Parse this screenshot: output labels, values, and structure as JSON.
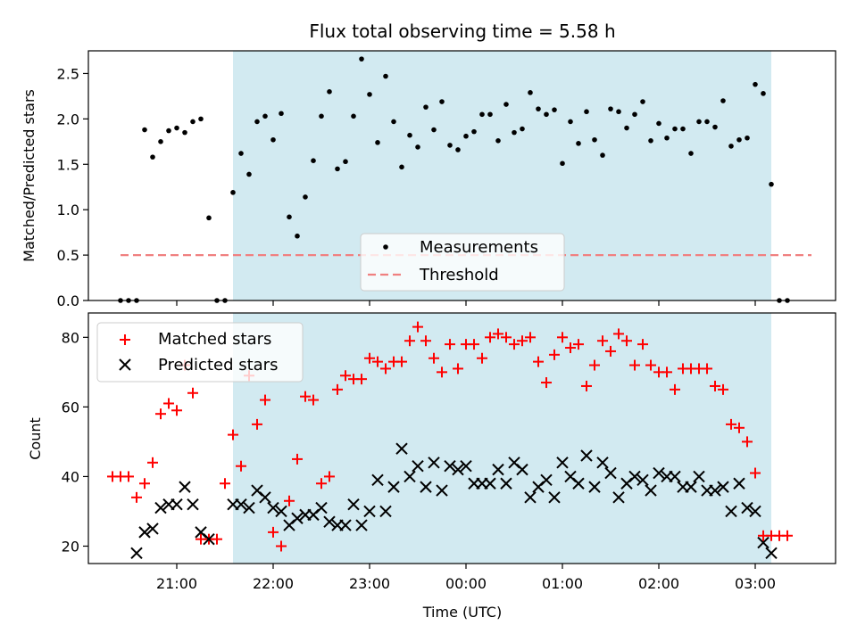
{
  "chart_data": [
    {
      "type": "scatter",
      "title": "Flux total observing time = 5.58 h",
      "ylabel": "Matched/Predicted stars",
      "xlabel": "",
      "xlim": [
        "20:05",
        "03:50"
      ],
      "ylim": [
        0,
        2.75
      ],
      "x_ticks": [
        "21:00",
        "22:00",
        "23:00",
        "00:00",
        "01:00",
        "02:00",
        "03:00"
      ],
      "y_ticks": [
        "0.0",
        "0.5",
        "1.0",
        "1.5",
        "2.0",
        "2.5"
      ],
      "shaded_region": {
        "start": "21:35",
        "end": "03:10",
        "color": "#add8e6"
      },
      "threshold": {
        "name": "Threshold",
        "value": 0.5,
        "color": "#f08080",
        "start": "20:25",
        "end": "03:35"
      },
      "legend": {
        "placement": "lower-center",
        "entries": [
          "Measurements",
          "Threshold"
        ]
      },
      "series": [
        {
          "name": "Measurements",
          "color": "#000000",
          "x": [
            "20:25",
            "20:30",
            "20:35",
            "20:40",
            "20:45",
            "20:50",
            "20:55",
            "21:00",
            "21:05",
            "21:10",
            "21:15",
            "21:20",
            "21:25",
            "21:30",
            "21:35",
            "21:40",
            "21:45",
            "21:50",
            "21:55",
            "22:00",
            "22:05",
            "22:10",
            "22:15",
            "22:20",
            "22:25",
            "22:30",
            "22:35",
            "22:40",
            "22:45",
            "22:50",
            "22:55",
            "23:00",
            "23:05",
            "23:10",
            "23:15",
            "23:20",
            "23:25",
            "23:30",
            "23:35",
            "23:40",
            "23:45",
            "23:50",
            "23:55",
            "00:00",
            "00:05",
            "00:10",
            "00:15",
            "00:20",
            "00:25",
            "00:30",
            "00:35",
            "00:40",
            "00:45",
            "00:50",
            "00:55",
            "01:00",
            "01:05",
            "01:10",
            "01:15",
            "01:20",
            "01:25",
            "01:30",
            "01:35",
            "01:40",
            "01:45",
            "01:50",
            "01:55",
            "02:00",
            "02:05",
            "02:10",
            "02:15",
            "02:20",
            "02:25",
            "02:30",
            "02:35",
            "02:40",
            "02:45",
            "02:50",
            "02:55",
            "03:00",
            "03:05",
            "03:10",
            "03:15",
            "03:20"
          ],
          "y": [
            0,
            0,
            0,
            1.88,
            1.58,
            1.75,
            1.87,
            1.9,
            1.85,
            1.97,
            2.0,
            0.91,
            0,
            0,
            1.19,
            1.62,
            1.39,
            1.97,
            2.03,
            1.77,
            2.06,
            0.92,
            0.71,
            1.14,
            1.54,
            2.03,
            2.3,
            1.45,
            1.53,
            2.03,
            2.66,
            2.27,
            1.74,
            2.47,
            1.97,
            1.47,
            1.82,
            1.69,
            2.13,
            1.88,
            2.19,
            1.71,
            1.66,
            1.81,
            1.86,
            2.05,
            2.05,
            1.76,
            2.16,
            1.85,
            1.89,
            2.29,
            2.11,
            2.05,
            2.1,
            1.51,
            1.97,
            1.73,
            2.08,
            1.77,
            1.6,
            2.11,
            2.08,
            1.9,
            2.05,
            2.19,
            1.76,
            1.95,
            1.79,
            1.89,
            1.89,
            1.62,
            1.97,
            1.97,
            1.91,
            2.2,
            1.7,
            1.77,
            1.79,
            2.38,
            2.28,
            1.28,
            0,
            0
          ]
        }
      ]
    },
    {
      "type": "scatter",
      "title": "",
      "ylabel": "Count",
      "xlabel": "Time (UTC)",
      "xlim": [
        "20:05",
        "03:50"
      ],
      "ylim": [
        15,
        87
      ],
      "x_ticks": [
        "21:00",
        "22:00",
        "23:00",
        "00:00",
        "01:00",
        "02:00",
        "03:00"
      ],
      "y_ticks": [
        "20",
        "40",
        "60",
        "80"
      ],
      "shaded_region": {
        "start": "21:35",
        "end": "03:10",
        "color": "#add8e6"
      },
      "legend": {
        "placement": "top-left",
        "entries": [
          "Matched stars",
          "Predicted stars"
        ]
      },
      "series": [
        {
          "name": "Matched stars",
          "marker": "plus",
          "color": "#ff0000",
          "x": [
            "20:20",
            "20:25",
            "20:30",
            "20:35",
            "20:40",
            "20:45",
            "20:50",
            "20:55",
            "21:00",
            "21:05",
            "21:10",
            "21:15",
            "21:20",
            "21:25",
            "21:30",
            "21:35",
            "21:40",
            "21:45",
            "21:50",
            "21:55",
            "22:00",
            "22:05",
            "22:10",
            "22:15",
            "22:20",
            "22:25",
            "22:30",
            "22:35",
            "22:40",
            "22:45",
            "22:50",
            "22:55",
            "23:00",
            "23:05",
            "23:10",
            "23:15",
            "23:20",
            "23:25",
            "23:30",
            "23:35",
            "23:40",
            "23:45",
            "23:50",
            "23:55",
            "00:00",
            "00:05",
            "00:10",
            "00:15",
            "00:20",
            "00:25",
            "00:30",
            "00:35",
            "00:40",
            "00:45",
            "00:50",
            "00:55",
            "01:00",
            "01:05",
            "01:10",
            "01:15",
            "01:20",
            "01:25",
            "01:30",
            "01:35",
            "01:40",
            "01:45",
            "01:50",
            "01:55",
            "02:00",
            "02:05",
            "02:10",
            "02:15",
            "02:20",
            "02:25",
            "02:30",
            "02:35",
            "02:40",
            "02:45",
            "02:50",
            "02:55",
            "03:00",
            "03:05",
            "03:10",
            "03:15",
            "03:20"
          ],
          "y": [
            40,
            40,
            40,
            34,
            38,
            44,
            58,
            61,
            59,
            72,
            64,
            22,
            22,
            22,
            38,
            52,
            43,
            69,
            55,
            62,
            24,
            20,
            33,
            45,
            63,
            62,
            38,
            40,
            65,
            69,
            68,
            68,
            74,
            73,
            71,
            73,
            73,
            79,
            83,
            79,
            74,
            70,
            78,
            71,
            78,
            78,
            74,
            80,
            81,
            80,
            78,
            79,
            80,
            73,
            67,
            75,
            80,
            77,
            78,
            66,
            72,
            79,
            76,
            81,
            79,
            72,
            78,
            72,
            70,
            70,
            65,
            71,
            71,
            71,
            71,
            66,
            65,
            55,
            54,
            50,
            41,
            23,
            23,
            23,
            23
          ],
          "x_shift_fix": true
        },
        {
          "name": "Predicted stars",
          "marker": "x",
          "color": "#000000",
          "x": [
            "20:35",
            "20:40",
            "20:45",
            "20:50",
            "20:55",
            "21:00",
            "21:05",
            "21:10",
            "21:15",
            "21:20",
            "21:35",
            "21:40",
            "21:45",
            "21:50",
            "21:55",
            "22:00",
            "22:05",
            "22:10",
            "22:15",
            "22:20",
            "22:25",
            "22:30",
            "22:35",
            "22:40",
            "22:45",
            "22:50",
            "22:55",
            "23:00",
            "23:05",
            "23:10",
            "23:15",
            "23:20",
            "23:25",
            "23:30",
            "23:35",
            "23:40",
            "23:45",
            "23:50",
            "23:55",
            "00:00",
            "00:05",
            "00:10",
            "00:15",
            "00:20",
            "00:25",
            "00:30",
            "00:35",
            "00:40",
            "00:45",
            "00:50",
            "00:55",
            "01:00",
            "01:05",
            "01:10",
            "01:15",
            "01:20",
            "01:25",
            "01:30",
            "01:35",
            "01:40",
            "01:45",
            "01:50",
            "01:55",
            "02:00",
            "02:05",
            "02:10",
            "02:15",
            "02:20",
            "02:25",
            "02:30",
            "02:35",
            "02:40",
            "02:45",
            "02:50",
            "02:55",
            "03:00",
            "03:05",
            "03:10"
          ],
          "y": [
            18,
            24,
            25,
            31,
            32,
            32,
            37,
            32,
            24,
            22,
            32,
            32,
            31,
            36,
            34,
            31,
            30,
            26,
            28,
            29,
            29,
            31,
            27,
            26,
            26,
            32,
            26,
            30,
            39,
            30,
            37,
            48,
            40,
            43,
            37,
            44,
            36,
            43,
            42,
            43,
            38,
            38,
            38,
            42,
            38,
            44,
            42,
            34,
            37,
            39,
            34,
            44,
            40,
            38,
            46,
            37,
            44,
            41,
            34,
            38,
            40,
            39,
            36,
            41,
            40,
            40,
            37,
            37,
            40,
            36,
            36,
            37,
            30,
            38,
            31,
            30,
            21,
            18
          ]
        }
      ]
    }
  ]
}
